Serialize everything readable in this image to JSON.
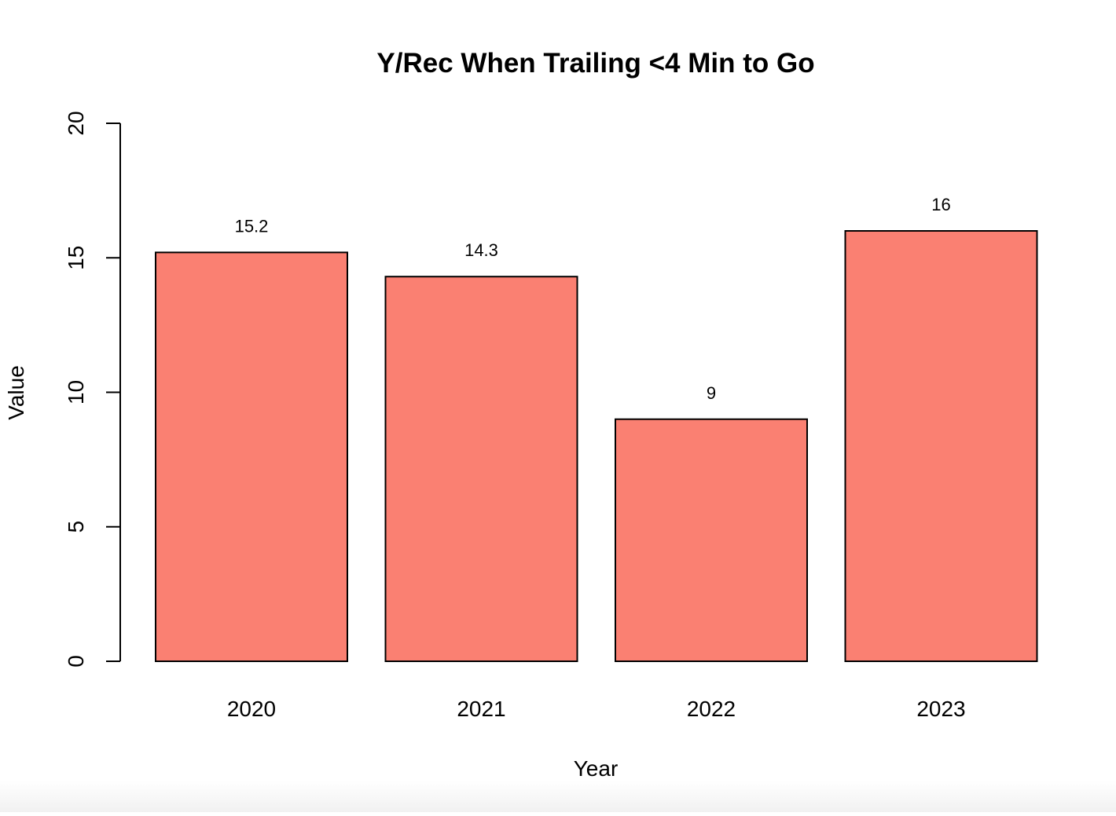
{
  "chart_data": {
    "type": "bar",
    "title": "Y/Rec When Trailing <4 Min to Go",
    "xlabel": "Year",
    "ylabel": "Value",
    "categories": [
      "2020",
      "2021",
      "2022",
      "2023"
    ],
    "values": [
      15.2,
      14.3,
      9,
      16
    ],
    "value_labels": [
      "15.2",
      "14.3",
      "9",
      "16"
    ],
    "ylim": [
      0,
      20
    ],
    "yticks": [
      0,
      5,
      10,
      15,
      20
    ],
    "ytick_labels": [
      "0",
      "5",
      "10",
      "15",
      "20"
    ],
    "bar_color": "#FA8072",
    "bar_border_color": "#000000",
    "grid": false,
    "legend": "none"
  }
}
